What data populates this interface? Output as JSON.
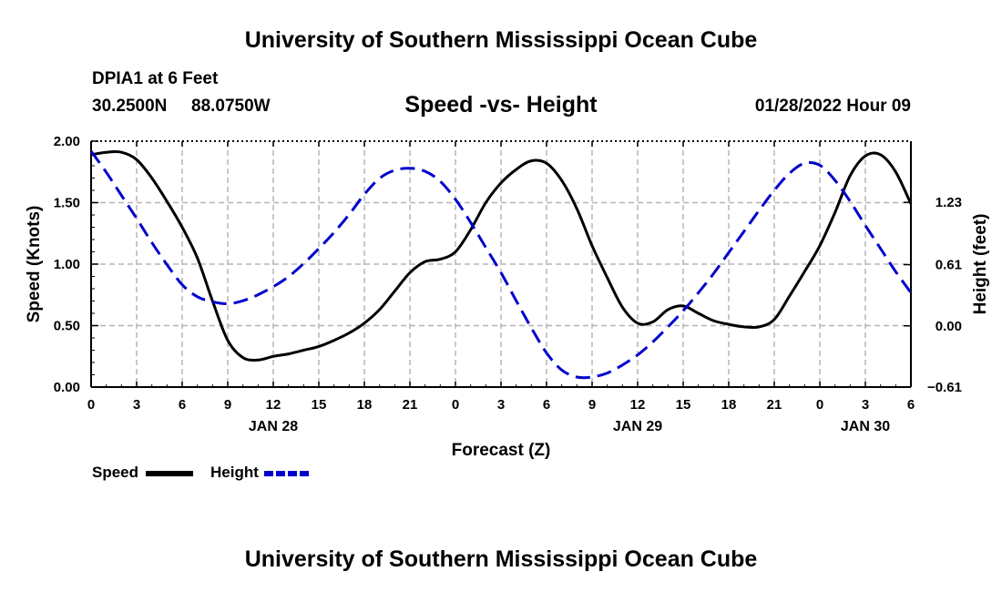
{
  "header": {
    "title": "University of Southern Mississippi Ocean Cube",
    "station": "DPIA1 at 6 Feet",
    "lat": "30.2500N",
    "lon": "88.0750W",
    "subtitle": "Speed -vs- Height",
    "datetime": "01/28/2022 Hour 09"
  },
  "footer": {
    "title": "University of Southern Mississippi Ocean Cube"
  },
  "legend": {
    "speed_label": "Speed",
    "height_label": "Height",
    "speed_color": "#000000",
    "height_color": "#0000cc"
  },
  "chart_data": {
    "type": "line",
    "title": "Speed -vs- Height",
    "xlabel": "Forecast (Z)",
    "ylabel_left": "Speed (Knots)",
    "ylabel_right": "Height (feet)",
    "x_hours_range": [
      0,
      54
    ],
    "x_ticks": [
      {
        "hour": 0,
        "label": "0"
      },
      {
        "hour": 3,
        "label": "3"
      },
      {
        "hour": 6,
        "label": "6"
      },
      {
        "hour": 9,
        "label": "9"
      },
      {
        "hour": 12,
        "label": "12"
      },
      {
        "hour": 15,
        "label": "15"
      },
      {
        "hour": 18,
        "label": "18"
      },
      {
        "hour": 21,
        "label": "21"
      },
      {
        "hour": 24,
        "label": "0"
      },
      {
        "hour": 27,
        "label": "3"
      },
      {
        "hour": 30,
        "label": "6"
      },
      {
        "hour": 33,
        "label": "9"
      },
      {
        "hour": 36,
        "label": "12"
      },
      {
        "hour": 39,
        "label": "15"
      },
      {
        "hour": 42,
        "label": "18"
      },
      {
        "hour": 45,
        "label": "21"
      },
      {
        "hour": 48,
        "label": "0"
      },
      {
        "hour": 51,
        "label": "3"
      },
      {
        "hour": 54,
        "label": "6"
      }
    ],
    "date_labels": [
      {
        "hour": 12,
        "label": "JAN 28"
      },
      {
        "hour": 36,
        "label": "JAN 29"
      },
      {
        "hour": 51,
        "label": "JAN 30"
      }
    ],
    "ylim_left": [
      0,
      2
    ],
    "yticks_left": [
      {
        "value": 0,
        "label": "0.00"
      },
      {
        "value": 0.5,
        "label": "0.50"
      },
      {
        "value": 1,
        "label": "1.00"
      },
      {
        "value": 1.5,
        "label": "1.50"
      },
      {
        "value": 2,
        "label": "2.00"
      }
    ],
    "ylim_right": [
      -0.61,
      1.84
    ],
    "yticks_right": [
      {
        "value": -0.61,
        "label": "-0.61"
      },
      {
        "value": 0.0,
        "label": "0.00"
      },
      {
        "value": 0.61,
        "label": "0.61"
      },
      {
        "value": 1.23,
        "label": "1.23"
      }
    ],
    "grid": true,
    "series": [
      {
        "name": "Speed",
        "axis": "left",
        "color": "#000000",
        "style": "solid",
        "points": [
          [
            0,
            1.89
          ],
          [
            1,
            1.91
          ],
          [
            2,
            1.91
          ],
          [
            3,
            1.85
          ],
          [
            4,
            1.7
          ],
          [
            5,
            1.51
          ],
          [
            6,
            1.3
          ],
          [
            7,
            1.05
          ],
          [
            8,
            0.7
          ],
          [
            9,
            0.38
          ],
          [
            10,
            0.24
          ],
          [
            11,
            0.22
          ],
          [
            12,
            0.25
          ],
          [
            13,
            0.27
          ],
          [
            14,
            0.3
          ],
          [
            15,
            0.33
          ],
          [
            16,
            0.38
          ],
          [
            17,
            0.44
          ],
          [
            18,
            0.52
          ],
          [
            19,
            0.63
          ],
          [
            20,
            0.78
          ],
          [
            21,
            0.93
          ],
          [
            22,
            1.02
          ],
          [
            23,
            1.04
          ],
          [
            24,
            1.1
          ],
          [
            25,
            1.28
          ],
          [
            26,
            1.5
          ],
          [
            27,
            1.66
          ],
          [
            28,
            1.77
          ],
          [
            29,
            1.84
          ],
          [
            30,
            1.82
          ],
          [
            31,
            1.68
          ],
          [
            32,
            1.45
          ],
          [
            33,
            1.15
          ],
          [
            34,
            0.89
          ],
          [
            35,
            0.65
          ],
          [
            36,
            0.52
          ],
          [
            37,
            0.53
          ],
          [
            38,
            0.63
          ],
          [
            39,
            0.66
          ],
          [
            40,
            0.6
          ],
          [
            41,
            0.54
          ],
          [
            42,
            0.51
          ],
          [
            43,
            0.49
          ],
          [
            44,
            0.49
          ],
          [
            45,
            0.55
          ],
          [
            46,
            0.74
          ],
          [
            47,
            0.94
          ],
          [
            48,
            1.15
          ],
          [
            49,
            1.42
          ],
          [
            50,
            1.72
          ],
          [
            51,
            1.88
          ],
          [
            52,
            1.89
          ],
          [
            53,
            1.75
          ],
          [
            54,
            1.49
          ]
        ]
      },
      {
        "name": "Height",
        "axis": "right",
        "color": "#0000cc",
        "style": "dashed",
        "points": [
          [
            0,
            1.74
          ],
          [
            1,
            1.53
          ],
          [
            2,
            1.3
          ],
          [
            3,
            1.07
          ],
          [
            4,
            0.83
          ],
          [
            5,
            0.61
          ],
          [
            6,
            0.41
          ],
          [
            7,
            0.29
          ],
          [
            8,
            0.24
          ],
          [
            9,
            0.22
          ],
          [
            10,
            0.25
          ],
          [
            11,
            0.31
          ],
          [
            12,
            0.39
          ],
          [
            13,
            0.49
          ],
          [
            14,
            0.62
          ],
          [
            15,
            0.77
          ],
          [
            16,
            0.93
          ],
          [
            17,
            1.11
          ],
          [
            18,
            1.31
          ],
          [
            19,
            1.47
          ],
          [
            20,
            1.55
          ],
          [
            21,
            1.57
          ],
          [
            22,
            1.54
          ],
          [
            23,
            1.44
          ],
          [
            24,
            1.26
          ],
          [
            25,
            1.03
          ],
          [
            26,
            0.78
          ],
          [
            27,
            0.53
          ],
          [
            28,
            0.25
          ],
          [
            29,
            -0.02
          ],
          [
            30,
            -0.27
          ],
          [
            31,
            -0.44
          ],
          [
            32,
            -0.51
          ],
          [
            33,
            -0.51
          ],
          [
            34,
            -0.47
          ],
          [
            35,
            -0.39
          ],
          [
            36,
            -0.29
          ],
          [
            37,
            -0.16
          ],
          [
            38,
            -0.01
          ],
          [
            39,
            0.15
          ],
          [
            40,
            0.33
          ],
          [
            41,
            0.52
          ],
          [
            42,
            0.73
          ],
          [
            43,
            0.94
          ],
          [
            44,
            1.15
          ],
          [
            45,
            1.35
          ],
          [
            46,
            1.52
          ],
          [
            47,
            1.62
          ],
          [
            48,
            1.6
          ],
          [
            49,
            1.45
          ],
          [
            50,
            1.24
          ],
          [
            51,
            1.0
          ],
          [
            52,
            0.77
          ],
          [
            53,
            0.54
          ],
          [
            54,
            0.33
          ]
        ]
      }
    ]
  }
}
